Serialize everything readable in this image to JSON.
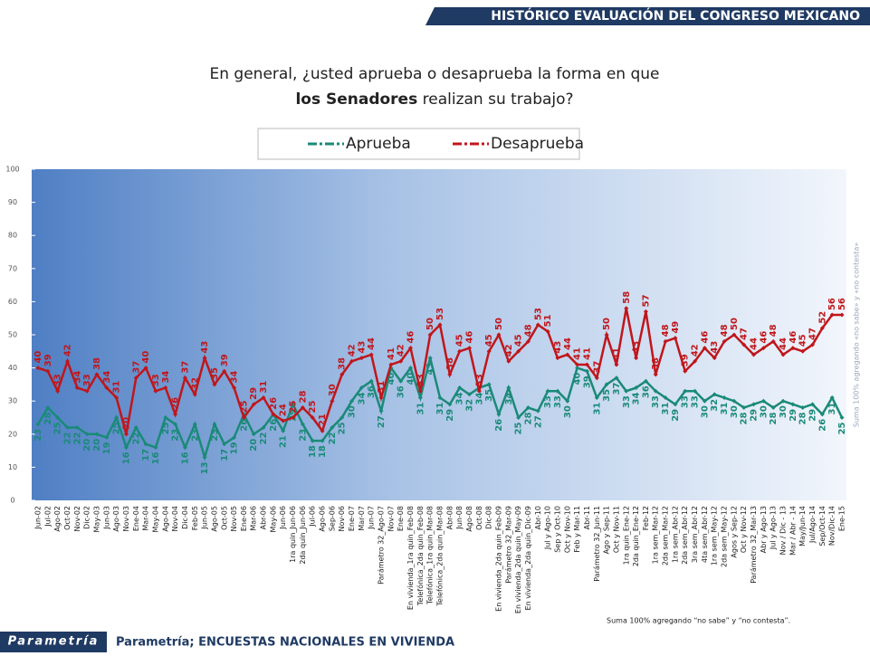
{
  "header": "HISTÓRICO EVALUACIÓN DEL CONGRESO MEXICANO",
  "footer": {
    "logo": "Parametría",
    "source": "Parametría; ENCUESTAS NACIONALES EN VIVIENDA",
    "note": "Suma 100% agregando “no sabe” y “no contesta”."
  },
  "side_note": "Suma 100% agregando «no sabe» y «no contesta»",
  "chart_data": {
    "type": "line",
    "title_line1": "En general, ¿usted aprueba o desaprueba la forma en que",
    "title_bold": "los Senadores",
    "title_rest": "realizan su trabajo?",
    "categories": [
      "Jun-02",
      "Jul-02",
      "Ago-02",
      "Oct-02",
      "Nov-02",
      "Dic-02",
      "May-03",
      "Jun-03",
      "Ago-03",
      "Nov-03",
      "Ene-04",
      "Mar-04",
      "May-04",
      "Ago-04",
      "Nov-04",
      "Dic-04",
      "Feb-05",
      "Jun-05",
      "Ago-05",
      "Oct-05",
      "Nov-05",
      "Ene-06",
      "Mar-06",
      "Abr-06",
      "May-06",
      "Jun-06",
      "1ra quin_Jun-06",
      "2da quin_Jun-06",
      "Jul-06",
      "Ago-06",
      "Sep-06",
      "Nov-06",
      "Ene-07",
      "Mar-07",
      "Jun-07",
      "Parámetro 32_Ago-07",
      "Nov-07",
      "Ene-08",
      "En vivienda_1ra quin_Feb-08",
      "Telefónica_2da quin_Feb-08",
      "Telefónica_1ra quin_Mar-08",
      "Telefónica_2da quin_Mar-08",
      "Abr-08",
      "Jun-08",
      "Ago-08",
      "Oct-08",
      "Dic-08",
      "En vivienda_2da quin_Feb-09",
      "Parámetro 32_Mar-09",
      "En vivienda_2da quin_May-09",
      "En vivienda_2da quin_Dic-09",
      "Abr-10",
      "Jul y Ago-10",
      "Sep y Oct-10",
      "Oct y Nov-10",
      "Feb y Mar-11",
      "Abr-11",
      "Parámetro 32_Jun-11",
      "Ago y Sep-11",
      "Oct y Nov-11",
      "1ra quin_Ene-12",
      "2da quin_Ene-12",
      "Feb-12",
      "1ra sem_Mar-12",
      "2da sem_Mar-12",
      "1ra sem_Abr-12",
      "2da sem_Abr-12",
      "3ra sem_Abr-12",
      "4ta sem_Abr-12",
      "1ra sem_May-12",
      "2da sem_May-12",
      "Agos y Sep-12",
      "Oct y Nov-12",
      "Parámetro 32_Mar-13",
      "Abr y Ago-13",
      "Jul y Ago-13",
      "Nov / Dic - 13",
      "Mar / Abr - 14",
      "May/Jun-14",
      "Jul/Ago-14",
      "Sep/Oct-14",
      "Nov/Dic-14",
      "Ene-15"
    ],
    "series": [
      {
        "name": "Aprueba",
        "color": "#1a8a78",
        "values": [
          23,
          28,
          25,
          22,
          22,
          20,
          20,
          19,
          25,
          16,
          22,
          17,
          16,
          25,
          23,
          16,
          23,
          13,
          23,
          17,
          19,
          26,
          20,
          22,
          26,
          21,
          29,
          23,
          18,
          18,
          22,
          25,
          30,
          34,
          36,
          27,
          40,
          36,
          40,
          31,
          43,
          31,
          29,
          34,
          32,
          34,
          35,
          26,
          34,
          25,
          28,
          27,
          33,
          33,
          30,
          40,
          39,
          31,
          35,
          37,
          33,
          34,
          36,
          33,
          31,
          29,
          33,
          33,
          30,
          32,
          31,
          30,
          28,
          29,
          30,
          28,
          30,
          29,
          28,
          29,
          26,
          31,
          25
        ]
      },
      {
        "name": "Desaprueba",
        "color": "#c0161b",
        "values": [
          40,
          39,
          33,
          42,
          34,
          33,
          38,
          34,
          31,
          20,
          37,
          40,
          33,
          34,
          26,
          37,
          32,
          43,
          35,
          39,
          34,
          25,
          29,
          31,
          26,
          24,
          25,
          28,
          25,
          21,
          30,
          38,
          42,
          43,
          44,
          31,
          41,
          42,
          46,
          33,
          50,
          53,
          38,
          45,
          46,
          33,
          45,
          50,
          42,
          45,
          48,
          53,
          51,
          43,
          44,
          41,
          41,
          37,
          50,
          41,
          58,
          43,
          57,
          38,
          48,
          49,
          39,
          42,
          46,
          43,
          48,
          50,
          47,
          44,
          46,
          48,
          44,
          46,
          45,
          47,
          52,
          56,
          56
        ]
      }
    ],
    "ylim": [
      0,
      100
    ],
    "yticks": [
      0,
      10,
      20,
      30,
      40,
      50,
      60,
      70,
      80,
      90,
      100
    ],
    "grid": false,
    "legend": "top"
  }
}
